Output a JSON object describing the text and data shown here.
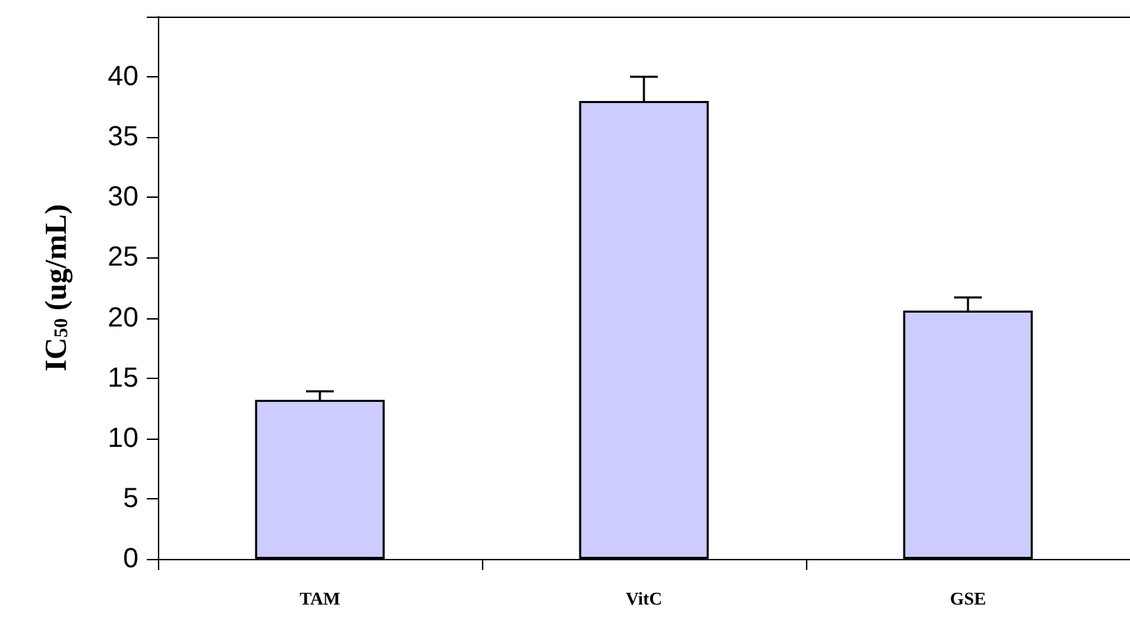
{
  "chart_data": {
    "type": "bar",
    "ylabel": "IC$_{50}$ (ug/mL)",
    "categories": [
      "TAM",
      "VitC",
      "GSE"
    ],
    "values": [
      13.2,
      38.0,
      20.6
    ],
    "errors": [
      0.7,
      2.0,
      1.1
    ],
    "color": "#ccccff",
    "ylim": [
      0,
      45
    ],
    "yticks": [
      0,
      5,
      10,
      15,
      20,
      25,
      30,
      35,
      40,
      {
        "value": 45,
        "label": null
      }
    ],
    "grid": false
  }
}
